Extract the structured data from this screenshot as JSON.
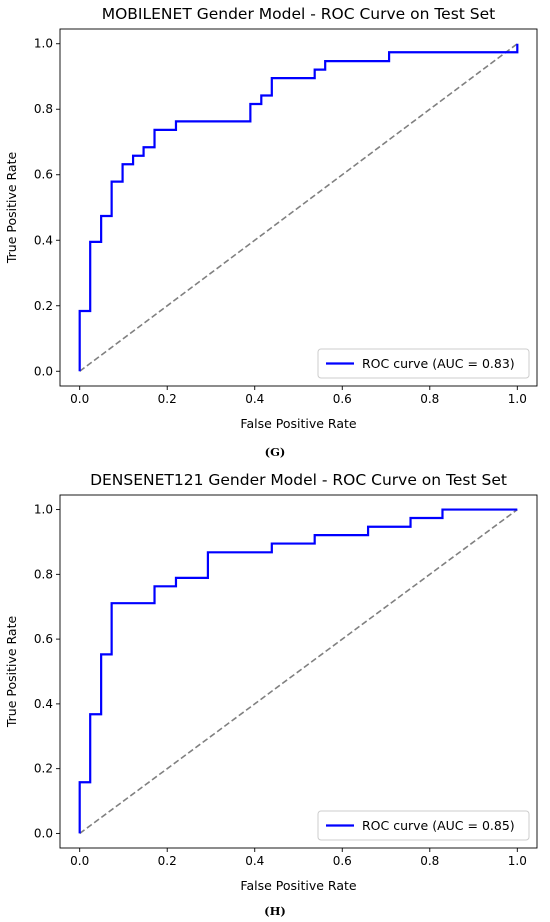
{
  "chart_data": [
    {
      "type": "line",
      "title": "MOBILENET Gender Model - ROC Curve on Test Set",
      "xlabel": "False Positive Rate",
      "ylabel": "True Positive Rate",
      "xlim": [
        0,
        1
      ],
      "ylim": [
        0,
        1
      ],
      "xticks": [
        "0.0",
        "0.2",
        "0.4",
        "0.6",
        "0.8",
        "1.0"
      ],
      "yticks": [
        "0.0",
        "0.2",
        "0.4",
        "0.6",
        "0.8",
        "1.0"
      ],
      "grid": false,
      "legend_position": "lower-right",
      "series": [
        {
          "name": "ROC curve (AUC = 0.83)",
          "color": "#0000ff",
          "x": [
            0.0,
            0.0,
            0.024,
            0.024,
            0.049,
            0.049,
            0.073,
            0.073,
            0.098,
            0.098,
            0.122,
            0.122,
            0.146,
            0.146,
            0.171,
            0.171,
            0.22,
            0.22,
            0.39,
            0.39,
            0.415,
            0.415,
            0.439,
            0.439,
            0.537,
            0.537,
            0.561,
            0.561,
            0.707,
            0.707,
            1.0,
            1.0
          ],
          "y": [
            0.0,
            0.184,
            0.184,
            0.395,
            0.395,
            0.474,
            0.474,
            0.579,
            0.579,
            0.632,
            0.632,
            0.658,
            0.658,
            0.684,
            0.684,
            0.737,
            0.737,
            0.763,
            0.763,
            0.816,
            0.816,
            0.842,
            0.842,
            0.895,
            0.895,
            0.921,
            0.921,
            0.947,
            0.947,
            0.974,
            0.974,
            1.0
          ]
        },
        {
          "name": "",
          "color": "#808080",
          "dashed": true,
          "x": [
            0,
            1
          ],
          "y": [
            0,
            1
          ]
        }
      ],
      "caption": "(G)"
    },
    {
      "type": "line",
      "title": "DENSENET121 Gender Model - ROC Curve on Test Set",
      "xlabel": "False Positive Rate",
      "ylabel": "True Positive Rate",
      "xlim": [
        0,
        1
      ],
      "ylim": [
        0,
        1
      ],
      "xticks": [
        "0.0",
        "0.2",
        "0.4",
        "0.6",
        "0.8",
        "1.0"
      ],
      "yticks": [
        "0.0",
        "0.2",
        "0.4",
        "0.6",
        "0.8",
        "1.0"
      ],
      "grid": false,
      "legend_position": "lower-right",
      "series": [
        {
          "name": "ROC curve (AUC = 0.85)",
          "color": "#0000ff",
          "x": [
            0.0,
            0.0,
            0.024,
            0.024,
            0.049,
            0.049,
            0.073,
            0.073,
            0.171,
            0.171,
            0.22,
            0.22,
            0.293,
            0.293,
            0.439,
            0.439,
            0.537,
            0.537,
            0.659,
            0.659,
            0.756,
            0.756,
            0.829,
            0.829,
            1.0
          ],
          "y": [
            0.0,
            0.158,
            0.158,
            0.368,
            0.368,
            0.553,
            0.553,
            0.711,
            0.711,
            0.763,
            0.763,
            0.789,
            0.789,
            0.868,
            0.868,
            0.895,
            0.895,
            0.921,
            0.921,
            0.947,
            0.947,
            0.974,
            0.974,
            1.0,
            1.0
          ]
        },
        {
          "name": "",
          "color": "#808080",
          "dashed": true,
          "x": [
            0,
            1
          ],
          "y": [
            0,
            1
          ]
        }
      ],
      "caption": "(H)"
    }
  ]
}
